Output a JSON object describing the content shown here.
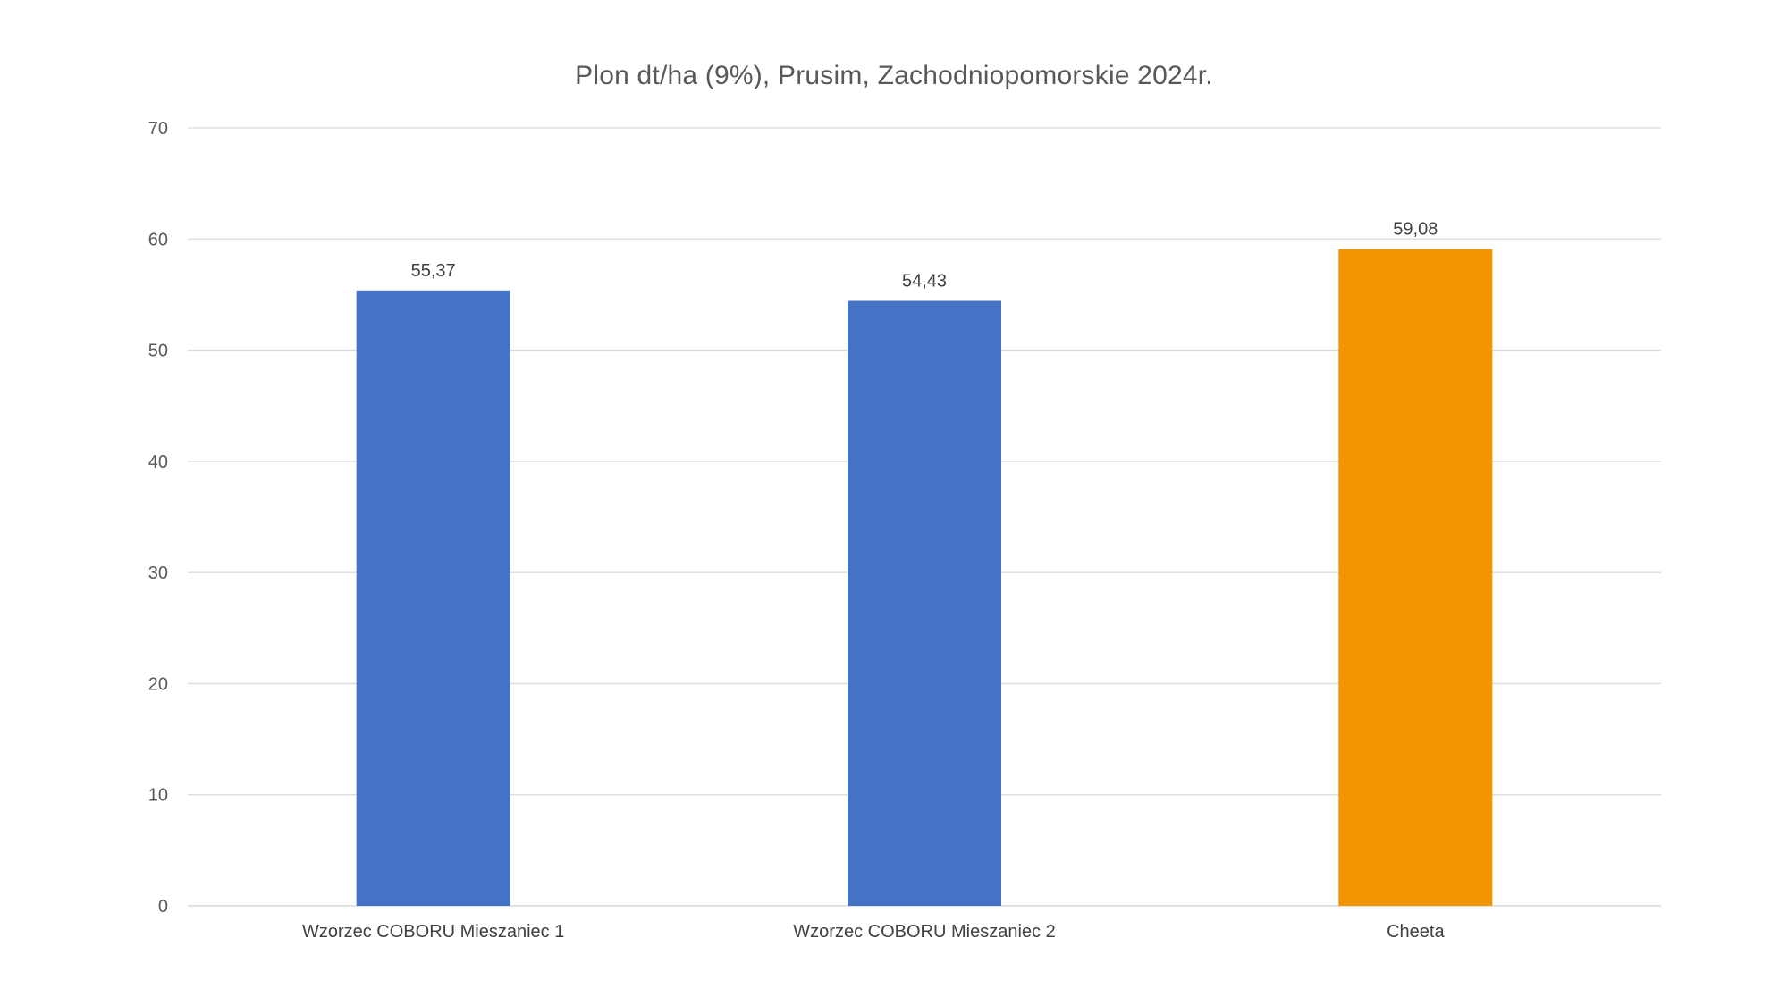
{
  "chart_data": {
    "type": "bar",
    "title": "Plon dt/ha (9%), Prusim, Zachodniopomorskie 2024r.",
    "xlabel": "",
    "ylabel": "",
    "categories": [
      "Wzorzec COBORU Mieszaniec 1",
      "Wzorzec COBORU Mieszaniec 2",
      "Cheeta"
    ],
    "values": [
      55.37,
      54.43,
      59.08
    ],
    "data_labels": [
      "55,37",
      "54,43",
      "59,08"
    ],
    "bar_colors": [
      "#4472C4",
      "#4472C4",
      "#F29400"
    ],
    "ylim": [
      0,
      70
    ],
    "yticks": [
      0,
      10,
      20,
      30,
      40,
      50,
      60,
      70
    ],
    "grid": true,
    "legend": "none"
  }
}
